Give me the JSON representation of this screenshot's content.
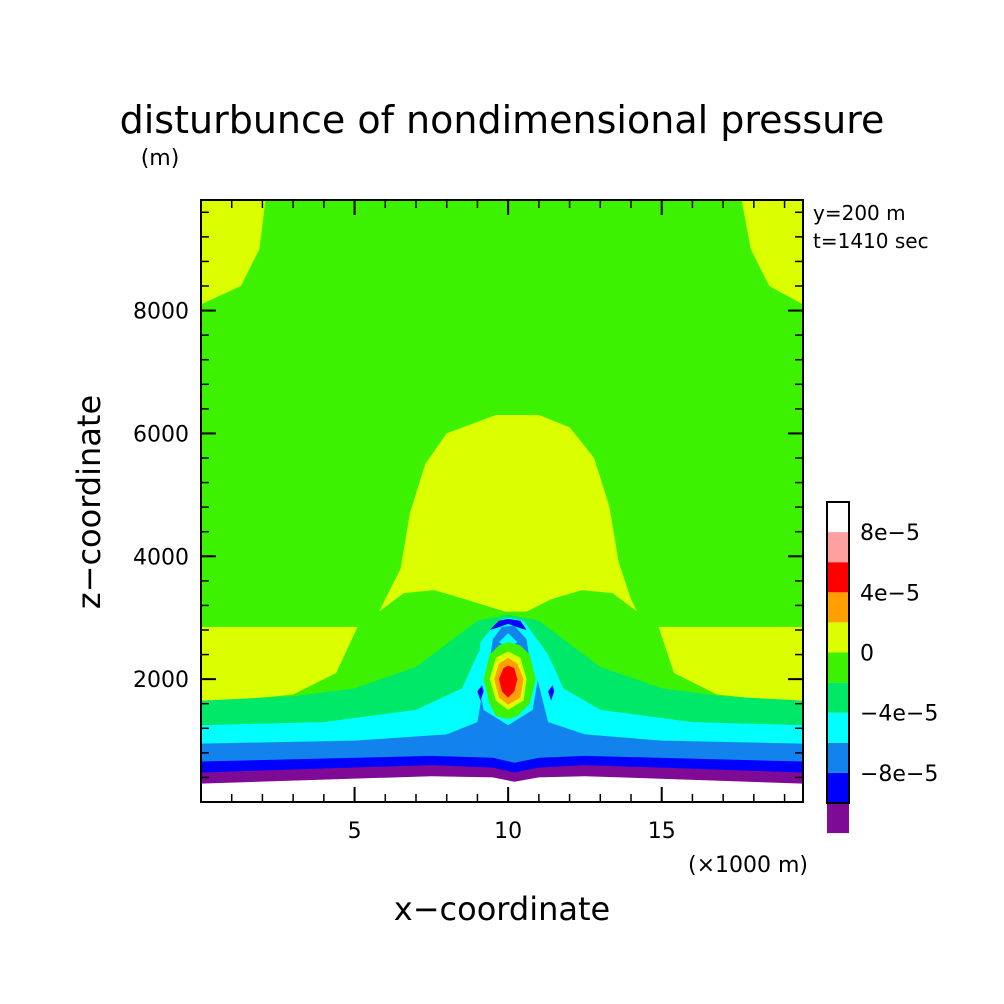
{
  "chart_data": {
    "type": "heatmap",
    "title": "disturbunce of nondimensional pressure",
    "ylabel_unit": "(m)",
    "xlabel": "x−coordinate",
    "ylabel": "z−coordinate",
    "xunit": "(×1000 m)",
    "annotations": [
      "y=200 m",
      "t=1410 sec"
    ],
    "xlim": [
      0,
      19.6
    ],
    "ylim": [
      0,
      9800
    ],
    "x_ticks": [
      {
        "value": 5,
        "label": "5"
      },
      {
        "value": 10,
        "label": "10"
      },
      {
        "value": 15,
        "label": "15"
      }
    ],
    "y_ticks": [
      {
        "value": 2000,
        "label": "2000"
      },
      {
        "value": 4000,
        "label": "4000"
      },
      {
        "value": 6000,
        "label": "6000"
      },
      {
        "value": 8000,
        "label": "8000"
      }
    ],
    "colorbar": {
      "levels": [
        -0.00012,
        -0.0001,
        -8e-05,
        -6e-05,
        -4e-05,
        -2e-05,
        0,
        2e-05,
        4e-05,
        6e-05,
        8e-05,
        0.0001
      ],
      "colors": [
        "#7f0a96",
        "#0000ff",
        "#1283ed",
        "#00ffff",
        "#00e868",
        "#3cf200",
        "#dcff00",
        "#ffa000",
        "#ff0000",
        "#ffa0a0"
      ],
      "labels": [
        {
          "value": -8e-05,
          "label": "−8e−5"
        },
        {
          "value": -4e-05,
          "label": "−4e−5"
        },
        {
          "value": 0,
          "label": "0"
        },
        {
          "value": 4e-05,
          "label": "4e−5"
        },
        {
          "value": 8e-05,
          "label": "8e−5"
        }
      ]
    },
    "regions": [
      {
        "color": "#3cf200",
        "points": [
          [
            0,
            0
          ],
          [
            19.6,
            0
          ],
          [
            19.6,
            9800
          ],
          [
            0,
            9800
          ]
        ]
      },
      {
        "color": "#dcff00",
        "points": [
          [
            0,
            9800
          ],
          [
            2.1,
            9800
          ],
          [
            1.9,
            9000
          ],
          [
            1.3,
            8400
          ],
          [
            0,
            8100
          ]
        ]
      },
      {
        "color": "#dcff00",
        "points": [
          [
            19.6,
            9800
          ],
          [
            17.6,
            9800
          ],
          [
            17.9,
            9000
          ],
          [
            18.5,
            8400
          ],
          [
            19.6,
            8100
          ]
        ]
      },
      {
        "color": "#dcff00",
        "points": [
          [
            0,
            2850
          ],
          [
            5.1,
            2850
          ],
          [
            4.4,
            2100
          ],
          [
            3.0,
            1750
          ],
          [
            0,
            1600
          ]
        ]
      },
      {
        "color": "#dcff00",
        "points": [
          [
            19.6,
            2850
          ],
          [
            14.9,
            2850
          ],
          [
            15.4,
            2100
          ],
          [
            16.8,
            1750
          ],
          [
            19.6,
            1600
          ]
        ]
      },
      {
        "color": "#dcff00",
        "points": [
          [
            5.8,
            3100
          ],
          [
            6.6,
            3400
          ],
          [
            7.6,
            3450
          ],
          [
            8.6,
            3300
          ],
          [
            9.9,
            3100
          ],
          [
            10.6,
            3100
          ],
          [
            11.4,
            3300
          ],
          [
            12.4,
            3450
          ],
          [
            13.4,
            3400
          ],
          [
            14.2,
            3100
          ],
          [
            14.0,
            3300
          ],
          [
            13.6,
            3900
          ],
          [
            13.3,
            4800
          ],
          [
            12.8,
            5600
          ],
          [
            12.0,
            6100
          ],
          [
            11.0,
            6300
          ],
          [
            9.6,
            6300
          ],
          [
            8.0,
            6000
          ],
          [
            7.3,
            5500
          ],
          [
            6.8,
            4700
          ],
          [
            6.5,
            3800
          ]
        ]
      },
      {
        "color": "#00e868",
        "points": [
          [
            0,
            1650
          ],
          [
            3.0,
            1720
          ],
          [
            5.0,
            1850
          ],
          [
            7.0,
            2200
          ],
          [
            8.2,
            2650
          ],
          [
            9.0,
            2950
          ],
          [
            10.0,
            3050
          ],
          [
            11.0,
            2950
          ],
          [
            11.8,
            2650
          ],
          [
            13.0,
            2200
          ],
          [
            15.0,
            1850
          ],
          [
            17.0,
            1720
          ],
          [
            19.6,
            1650
          ],
          [
            19.6,
            700
          ],
          [
            0,
            700
          ]
        ]
      },
      {
        "color": "#00ffff",
        "points": [
          [
            0,
            1250
          ],
          [
            4.0,
            1300
          ],
          [
            7.0,
            1500
          ],
          [
            8.5,
            1850
          ],
          [
            9.0,
            2400
          ],
          [
            9.7,
            2950
          ],
          [
            10.0,
            3000
          ],
          [
            10.5,
            2950
          ],
          [
            11.3,
            2400
          ],
          [
            11.8,
            1850
          ],
          [
            13.0,
            1500
          ],
          [
            16.0,
            1300
          ],
          [
            19.6,
            1250
          ],
          [
            19.6,
            600
          ],
          [
            0,
            600
          ]
        ]
      },
      {
        "color": "#1283ed",
        "points": [
          [
            0,
            950
          ],
          [
            5.0,
            1000
          ],
          [
            8.0,
            1100
          ],
          [
            9.0,
            1300
          ],
          [
            9.2,
            1900
          ],
          [
            9.6,
            2700
          ],
          [
            10.0,
            2900
          ],
          [
            10.6,
            2700
          ],
          [
            11.0,
            1900
          ],
          [
            11.3,
            1300
          ],
          [
            12.5,
            1100
          ],
          [
            15.0,
            1000
          ],
          [
            19.6,
            950
          ],
          [
            19.6,
            500
          ],
          [
            0,
            500
          ]
        ]
      },
      {
        "color": "#0000ff",
        "points": [
          [
            0,
            660
          ],
          [
            7.5,
            750
          ],
          [
            9.5,
            720
          ],
          [
            10.2,
            640
          ],
          [
            11.0,
            720
          ],
          [
            12.5,
            750
          ],
          [
            19.6,
            660
          ],
          [
            19.6,
            300
          ],
          [
            0,
            300
          ]
        ]
      },
      {
        "color": "#7f0a96",
        "points": [
          [
            0,
            480
          ],
          [
            7.5,
            600
          ],
          [
            9.5,
            560
          ],
          [
            10.2,
            480
          ],
          [
            11.0,
            560
          ],
          [
            12.5,
            600
          ],
          [
            19.6,
            480
          ],
          [
            19.6,
            280
          ],
          [
            0,
            300
          ]
        ]
      },
      {
        "color": "#ffffff",
        "points": [
          [
            0,
            300
          ],
          [
            7.5,
            420
          ],
          [
            9.5,
            400
          ],
          [
            10.2,
            330
          ],
          [
            11.0,
            400
          ],
          [
            12.5,
            420
          ],
          [
            19.6,
            300
          ],
          [
            19.6,
            0
          ],
          [
            0,
            0
          ]
        ]
      },
      {
        "color": "#00ffff",
        "points": [
          [
            9.0,
            2100
          ],
          [
            9.1,
            2600
          ],
          [
            9.5,
            2850
          ],
          [
            10.0,
            2950
          ],
          [
            10.5,
            2850
          ],
          [
            10.9,
            2600
          ],
          [
            11.0,
            2100
          ],
          [
            10.8,
            1500
          ],
          [
            10.0,
            1250
          ],
          [
            9.2,
            1500
          ]
        ]
      },
      {
        "color": "#0000ff",
        "points": [
          [
            9.4,
            2800
          ],
          [
            9.7,
            2950
          ],
          [
            10.0,
            2980
          ],
          [
            10.4,
            2950
          ],
          [
            10.6,
            2800
          ],
          [
            10.4,
            2830
          ],
          [
            10.0,
            2900
          ],
          [
            9.6,
            2830
          ]
        ]
      },
      {
        "color": "#0000ff",
        "points": [
          [
            9.0,
            1800
          ],
          [
            9.15,
            1900
          ],
          [
            9.2,
            1800
          ],
          [
            9.1,
            1650
          ]
        ]
      },
      {
        "color": "#0000ff",
        "points": [
          [
            11.3,
            1800
          ],
          [
            11.45,
            1900
          ],
          [
            11.5,
            1800
          ],
          [
            11.4,
            1650
          ]
        ]
      },
      {
        "color": "#1283ed",
        "points": [
          [
            9.4,
            2300
          ],
          [
            9.5,
            2650
          ],
          [
            9.8,
            2850
          ],
          [
            10.2,
            2870
          ],
          [
            10.6,
            2650
          ],
          [
            10.7,
            2300
          ],
          [
            10.3,
            2500
          ],
          [
            9.8,
            2500
          ]
        ]
      },
      {
        "color": "#00ffff",
        "points": [
          [
            9.7,
            2600
          ],
          [
            10.0,
            2750
          ],
          [
            10.3,
            2600
          ],
          [
            10.0,
            2500
          ]
        ]
      },
      {
        "color": "#3cf200",
        "points": [
          [
            9.2,
            2000
          ],
          [
            9.4,
            2400
          ],
          [
            9.7,
            2550
          ],
          [
            10.0,
            2600
          ],
          [
            10.4,
            2550
          ],
          [
            10.7,
            2400
          ],
          [
            10.9,
            2000
          ],
          [
            10.7,
            1600
          ],
          [
            10.3,
            1400
          ],
          [
            10.0,
            1350
          ],
          [
            9.6,
            1400
          ],
          [
            9.4,
            1600
          ]
        ]
      },
      {
        "color": "#dcff00",
        "points": [
          [
            9.4,
            2000
          ],
          [
            9.6,
            2350
          ],
          [
            10.0,
            2450
          ],
          [
            10.4,
            2350
          ],
          [
            10.6,
            2000
          ],
          [
            10.5,
            1650
          ],
          [
            10.0,
            1500
          ],
          [
            9.6,
            1650
          ]
        ]
      },
      {
        "color": "#ffa000",
        "points": [
          [
            9.55,
            2000
          ],
          [
            9.7,
            2250
          ],
          [
            10.0,
            2350
          ],
          [
            10.3,
            2250
          ],
          [
            10.5,
            2000
          ],
          [
            10.4,
            1700
          ],
          [
            10.0,
            1580
          ],
          [
            9.7,
            1700
          ]
        ]
      },
      {
        "color": "#ff0000",
        "points": [
          [
            9.7,
            2000
          ],
          [
            9.85,
            2180
          ],
          [
            10.0,
            2220
          ],
          [
            10.2,
            2180
          ],
          [
            10.3,
            2000
          ],
          [
            10.2,
            1800
          ],
          [
            10.0,
            1700
          ],
          [
            9.8,
            1800
          ]
        ]
      }
    ]
  }
}
